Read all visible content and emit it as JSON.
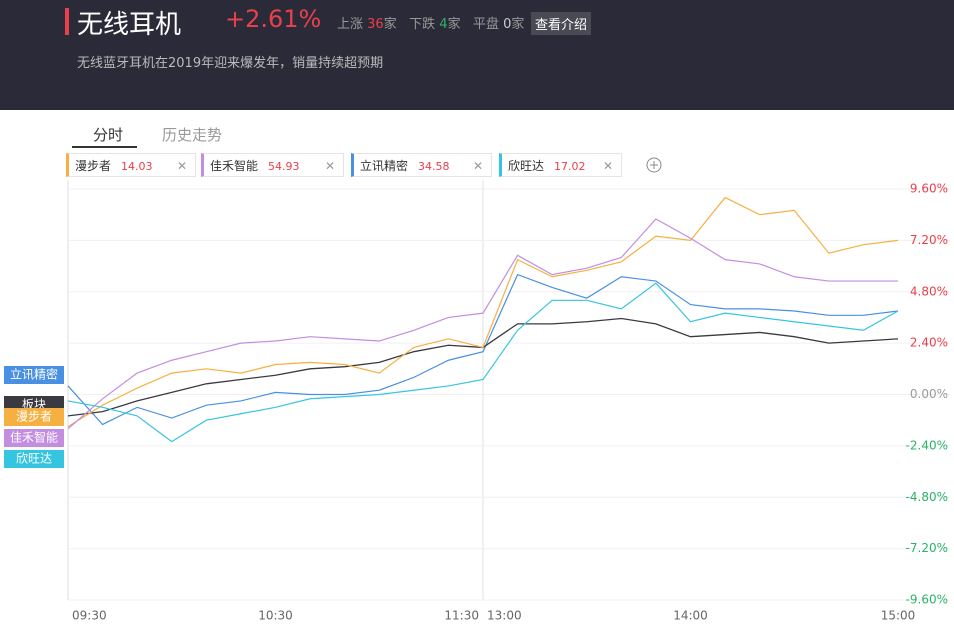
{
  "header": {
    "title": "无线耳机",
    "change": "+2.61%",
    "up_label": "上涨",
    "up_count": 36,
    "down_label": "下跌",
    "down_count": 4,
    "flat_label": "平盘",
    "flat_count": 0,
    "unit": "家",
    "button": "查看介绍",
    "subtitle": "无线蓝牙耳机在2019年迎来爆发年，销量持续超预期"
  },
  "tabs": [
    "分时",
    "历史走势"
  ],
  "stocks": [
    {
      "name": "漫步者",
      "price": 14.03,
      "color": "#f5b041"
    },
    {
      "name": "佳禾智能",
      "price": 54.93,
      "color": "#c38ee0"
    },
    {
      "name": "立讯精密",
      "price": 34.58,
      "color": "#4a90e2"
    },
    {
      "name": "欣旺达",
      "price": 17.02,
      "color": "#36c5e0"
    }
  ],
  "chart_data": {
    "type": "line",
    "categories": [
      "09:30",
      null,
      null,
      null,
      null,
      null,
      "10:30",
      null,
      null,
      null,
      null,
      null,
      "11:30",
      null,
      null,
      null,
      null,
      null,
      "14:00",
      null,
      null,
      null,
      null,
      null,
      "15:00"
    ],
    "break_label": "13:00",
    "ylim": [
      -9.6,
      9.6
    ],
    "yticks": [
      {
        "value": 9.6,
        "label": "9.60%"
      },
      {
        "value": 7.2,
        "label": "7.20%"
      },
      {
        "value": 4.8,
        "label": "4.80%"
      },
      {
        "value": 2.4,
        "label": "2.40%"
      },
      {
        "value": 0,
        "label": "0.00%"
      },
      {
        "value": -2.4,
        "label": "-2.40%"
      },
      {
        "value": -4.8,
        "label": "-4.80%"
      },
      {
        "value": -7.2,
        "label": "-7.20%"
      },
      {
        "value": -9.6,
        "label": "-9.60%"
      }
    ],
    "grid": true,
    "series": [
      {
        "name": "立讯精密",
        "color": "#4a90e2",
        "values": [
          0.4,
          -1.4,
          -0.6,
          -1.1,
          -0.5,
          -0.3,
          0.1,
          0.0,
          0.0,
          0.2,
          0.8,
          1.6,
          2.0,
          5.6,
          5.0,
          4.5,
          5.5,
          5.3,
          4.2,
          4.0,
          4.0,
          3.9,
          3.7,
          3.7,
          3.9
        ]
      },
      {
        "name": "板块",
        "color": "#3a3a40",
        "values": [
          -1.0,
          -0.8,
          -0.3,
          0.1,
          0.5,
          0.7,
          0.9,
          1.2,
          1.3,
          1.5,
          2.0,
          2.3,
          2.2,
          3.3,
          3.3,
          3.4,
          3.55,
          3.3,
          2.7,
          2.8,
          2.9,
          2.7,
          2.4,
          2.5,
          2.6
        ]
      },
      {
        "name": "漫步者",
        "color": "#f5b041",
        "values": [
          -1.5,
          -0.5,
          0.3,
          1.0,
          1.2,
          1.0,
          1.4,
          1.5,
          1.4,
          1.0,
          2.2,
          2.6,
          2.2,
          6.3,
          5.5,
          5.8,
          6.2,
          7.4,
          7.2,
          9.2,
          8.4,
          8.6,
          6.6,
          7.0,
          7.2
        ]
      },
      {
        "name": "佳禾智能",
        "color": "#c38ee0",
        "values": [
          -1.6,
          -0.2,
          1.0,
          1.6,
          2.0,
          2.4,
          2.5,
          2.7,
          2.6,
          2.5,
          3.0,
          3.6,
          3.8,
          6.5,
          5.6,
          5.9,
          6.4,
          8.2,
          7.3,
          6.3,
          6.1,
          5.5,
          5.3,
          5.3,
          5.3
        ]
      },
      {
        "name": "欣旺达",
        "color": "#36c5e0",
        "values": [
          -0.3,
          -0.6,
          -1.0,
          -2.2,
          -1.2,
          -0.9,
          -0.6,
          -0.2,
          -0.1,
          0.0,
          0.2,
          0.4,
          0.7,
          3.0,
          4.4,
          4.4,
          4.0,
          5.2,
          3.4,
          3.8,
          3.6,
          3.4,
          3.2,
          3.0,
          3.9
        ]
      }
    ]
  }
}
